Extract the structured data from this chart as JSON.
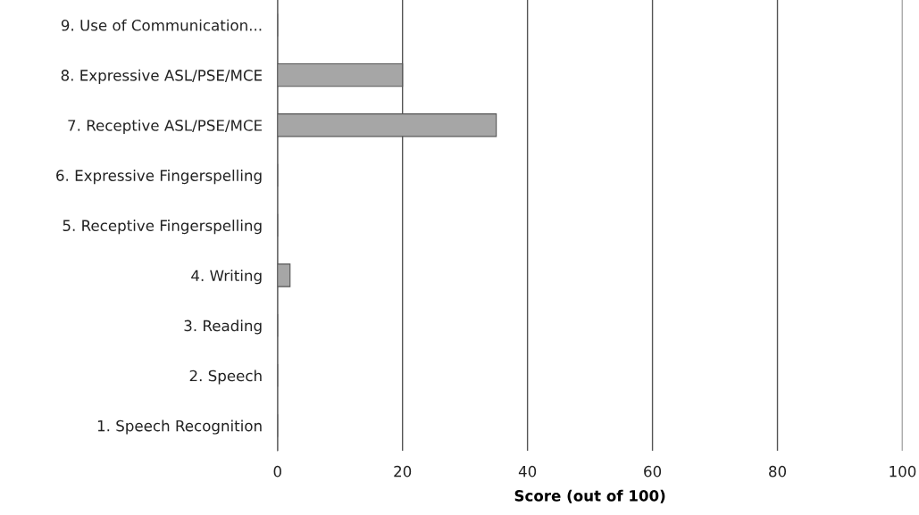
{
  "chart_data": {
    "type": "bar",
    "orientation": "horizontal",
    "xlabel": "Score (out of 100)",
    "categories": [
      "9. Use of Communication...",
      "8. Expressive ASL/PSE/MCE",
      "7. Receptive ASL/PSE/MCE",
      "6. Expressive Fingerspelling",
      "5. Receptive Fingerspelling",
      "4. Writing",
      "3. Reading",
      "2. Speech",
      "1. Speech Recognition"
    ],
    "values": [
      0,
      20,
      35,
      0,
      0,
      2,
      0,
      0,
      0
    ],
    "color": "#a6a6a6",
    "xlim": [
      0,
      100
    ],
    "xticks": [
      0,
      20,
      40,
      60,
      80,
      100
    ],
    "grid": "x"
  }
}
